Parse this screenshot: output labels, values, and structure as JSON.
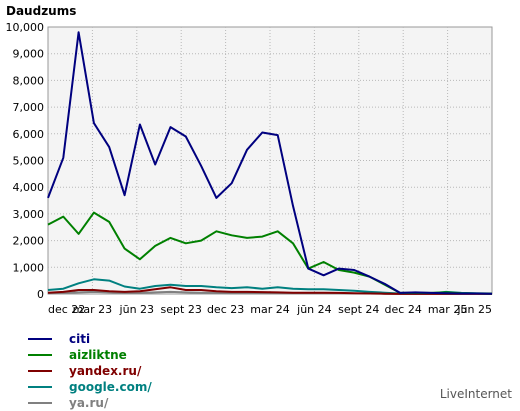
{
  "chart_data": {
    "type": "line",
    "title": "Daudzums",
    "ylim": [
      0,
      10000
    ],
    "yticks": [
      "0",
      "1,000",
      "2,000",
      "3,000",
      "4,000",
      "5,000",
      "6,000",
      "7,000",
      "8,000",
      "9,000",
      "10,000"
    ],
    "xticks": [
      "dec 22",
      "mar 23",
      "jūn 23",
      "sept 23",
      "dec 23",
      "mar 24",
      "jūn 24",
      "sept 24",
      "dec 24",
      "mar 25",
      "jūn 25"
    ],
    "grid": true,
    "legend_position": "bottom-left",
    "series": [
      {
        "name": "citi",
        "color": "#00007f",
        "values": [
          3600,
          5100,
          9800,
          6400,
          5500,
          3700,
          6350,
          4850,
          6250,
          5900,
          4800,
          3600,
          4150,
          5400,
          6050,
          5950,
          3300,
          950,
          700,
          950,
          900,
          650,
          380,
          40,
          60,
          40,
          30,
          20,
          20,
          10
        ]
      },
      {
        "name": "aizliktne",
        "color": "#008000",
        "values": [
          2600,
          2900,
          2250,
          3050,
          2700,
          1700,
          1300,
          1800,
          2100,
          1900,
          2000,
          2350,
          2200,
          2100,
          2150,
          2350,
          1900,
          950,
          1200,
          900,
          800,
          650,
          350,
          40,
          50,
          40,
          60,
          30,
          20,
          10
        ]
      },
      {
        "name": "yandex.ru/",
        "color": "#7f0000",
        "values": [
          50,
          80,
          150,
          150,
          100,
          80,
          100,
          180,
          250,
          150,
          150,
          100,
          80,
          80,
          70,
          60,
          50,
          50,
          50,
          40,
          30,
          20,
          10,
          5,
          5,
          5,
          5,
          5,
          5,
          5
        ]
      },
      {
        "name": "google.com/",
        "color": "#008080",
        "values": [
          150,
          200,
          400,
          550,
          500,
          280,
          200,
          300,
          350,
          300,
          300,
          250,
          220,
          250,
          200,
          250,
          200,
          180,
          180,
          150,
          120,
          80,
          50,
          20,
          30,
          30,
          80,
          40,
          30,
          20
        ]
      },
      {
        "name": "ya.ru/",
        "color": "#808080",
        "values": [
          30,
          40,
          60,
          80,
          60,
          40,
          40,
          60,
          80,
          60,
          50,
          40,
          30,
          30,
          30,
          30,
          30,
          30,
          30,
          30,
          20,
          20,
          10,
          5,
          5,
          5,
          5,
          5,
          5,
          5
        ]
      }
    ]
  },
  "footer": "LiveInternet"
}
